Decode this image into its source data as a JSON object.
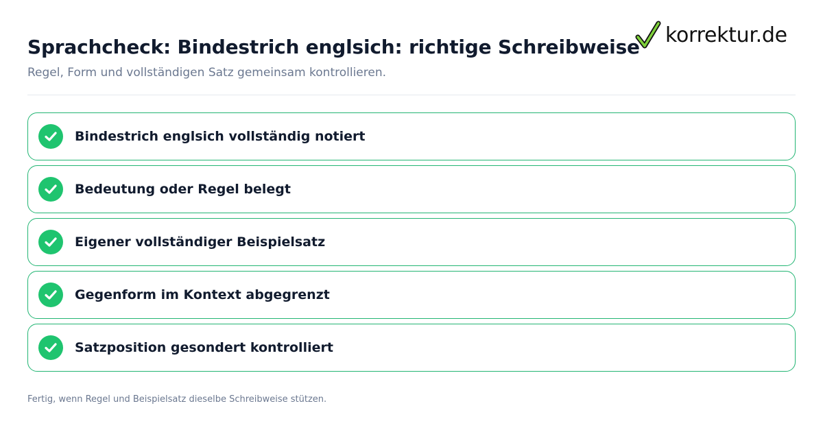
{
  "header": {
    "title": "Sprachcheck: Bindestrich englsich: richtige Schreibweise",
    "subtitle": "Regel, Form und vollständigen Satz gemeinsam kontrollieren."
  },
  "logo": {
    "text": "korrektur.de",
    "icon": "checkmark-icon"
  },
  "checklist": {
    "items": [
      {
        "label": "Bindestrich englsich vollständig notiert",
        "icon": "check-circle-icon"
      },
      {
        "label": "Bedeutung oder Regel belegt",
        "icon": "check-circle-icon"
      },
      {
        "label": "Eigener vollständiger Beispielsatz",
        "icon": "check-circle-icon"
      },
      {
        "label": "Gegenform im Kontext abgegrenzt",
        "icon": "check-circle-icon"
      },
      {
        "label": "Satzposition gesondert kontrolliert",
        "icon": "check-circle-icon"
      }
    ]
  },
  "footer": {
    "note": "Fertig, wenn Regel und Beispielsatz dieselbe Schreibweise stützen."
  },
  "colors": {
    "accent_green": "#1fc46f",
    "border_green": "#22b573",
    "title_text": "#111b2e",
    "muted_text": "#6b7890"
  }
}
